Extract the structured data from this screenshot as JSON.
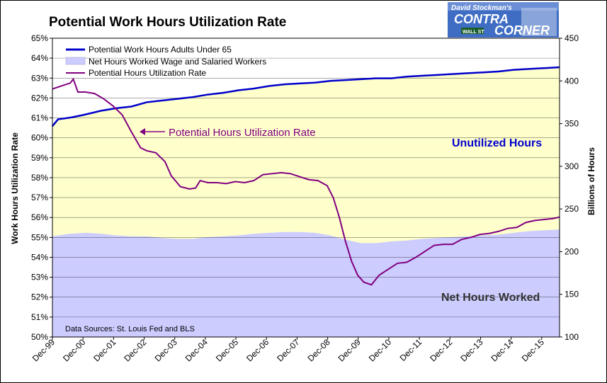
{
  "title": "Potential Work Hours Utilization Rate",
  "logo": {
    "line1": "David Stockman's",
    "line2": "CONTRA",
    "line3": "CORNER",
    "sign": "WALL ST"
  },
  "chart_data": {
    "type": "line",
    "title": "Potential Work Hours Utilization Rate",
    "ylabel_left": "Work Hours Utilization Rate",
    "ylabel_right": "Billions of Hours",
    "y_left_range": [
      0.5,
      0.65
    ],
    "y_left_ticks": [
      "50%",
      "51%",
      "52%",
      "53%",
      "54%",
      "55%",
      "56%",
      "57%",
      "58%",
      "59%",
      "60%",
      "61%",
      "62%",
      "63%",
      "64%",
      "65%"
    ],
    "y_right_range": [
      100,
      450
    ],
    "y_right_ticks": [
      "100",
      "150",
      "200",
      "250",
      "300",
      "350",
      "400",
      "450"
    ],
    "x_range": [
      1999.917,
      2016.5
    ],
    "x_ticks": [
      {
        "label": "Dec-99",
        "x": 1999.917
      },
      {
        "label": "Dec-00",
        "x": 2000.917
      },
      {
        "label": "Dec-01",
        "x": 2001.917
      },
      {
        "label": "Dec-02",
        "x": 2002.917
      },
      {
        "label": "Dec-03",
        "x": 2003.917
      },
      {
        "label": "Dec-04",
        "x": 2004.917
      },
      {
        "label": "Dec-05",
        "x": 2005.917
      },
      {
        "label": "Dec-06",
        "x": 2006.917
      },
      {
        "label": "Dec-07",
        "x": 2007.917
      },
      {
        "label": "Dec-08",
        "x": 2008.917
      },
      {
        "label": "Dec-09",
        "x": 2009.917
      },
      {
        "label": "Dec-10",
        "x": 2010.917
      },
      {
        "label": "Dec-11",
        "x": 2011.917
      },
      {
        "label": "Dec-12",
        "x": 2012.917
      },
      {
        "label": "Dec-13",
        "x": 2013.917
      },
      {
        "label": "Dec-14",
        "x": 2014.917
      },
      {
        "label": "Dec-15",
        "x": 2015.917
      }
    ],
    "grid": true,
    "legend_position": "top-left",
    "series": [
      {
        "name": "Potential Work Hours Adults Under 65",
        "axis": "right",
        "kind": "line",
        "color": "#0000cc",
        "points": [
          [
            1999.917,
            347
          ],
          [
            2000.1,
            355
          ],
          [
            2000.5,
            357
          ],
          [
            2000.917,
            360
          ],
          [
            2001.5,
            365
          ],
          [
            2002.0,
            368
          ],
          [
            2002.5,
            370
          ],
          [
            2003.0,
            375
          ],
          [
            2003.5,
            377
          ],
          [
            2004.0,
            379
          ],
          [
            2004.5,
            381
          ],
          [
            2005.0,
            384
          ],
          [
            2005.5,
            386
          ],
          [
            2006.0,
            389
          ],
          [
            2006.5,
            391
          ],
          [
            2007.0,
            394
          ],
          [
            2007.5,
            396
          ],
          [
            2008.0,
            397
          ],
          [
            2008.5,
            398
          ],
          [
            2009.0,
            400
          ],
          [
            2009.5,
            401
          ],
          [
            2010.0,
            402
          ],
          [
            2010.5,
            403
          ],
          [
            2011.0,
            403
          ],
          [
            2011.5,
            405
          ],
          [
            2012.0,
            406
          ],
          [
            2012.5,
            407
          ],
          [
            2013.0,
            408
          ],
          [
            2013.5,
            409
          ],
          [
            2014.0,
            410
          ],
          [
            2014.5,
            411
          ],
          [
            2015.0,
            413
          ],
          [
            2015.5,
            414
          ],
          [
            2016.0,
            415
          ],
          [
            2016.5,
            416
          ]
        ]
      },
      {
        "name": "Net Hours Worked Wage and Salaried Workers",
        "axis": "right",
        "kind": "area",
        "color": "#ccccff",
        "points": [
          [
            1999.917,
            218
          ],
          [
            2000.5,
            221
          ],
          [
            2001.0,
            222
          ],
          [
            2001.5,
            221
          ],
          [
            2002.0,
            219
          ],
          [
            2002.5,
            218
          ],
          [
            2003.0,
            218
          ],
          [
            2003.5,
            216
          ],
          [
            2004.0,
            215
          ],
          [
            2004.5,
            215
          ],
          [
            2005.0,
            217
          ],
          [
            2005.5,
            218
          ],
          [
            2006.0,
            219
          ],
          [
            2006.5,
            221
          ],
          [
            2007.0,
            222
          ],
          [
            2007.5,
            223
          ],
          [
            2008.0,
            223
          ],
          [
            2008.5,
            222
          ],
          [
            2009.0,
            219
          ],
          [
            2009.5,
            214
          ],
          [
            2010.0,
            210
          ],
          [
            2010.5,
            210
          ],
          [
            2011.0,
            212
          ],
          [
            2011.5,
            213
          ],
          [
            2012.0,
            215
          ],
          [
            2012.5,
            216
          ],
          [
            2013.0,
            217
          ],
          [
            2013.5,
            218
          ],
          [
            2014.0,
            219
          ],
          [
            2014.5,
            220
          ],
          [
            2015.0,
            222
          ],
          [
            2015.5,
            224
          ],
          [
            2016.0,
            225
          ],
          [
            2016.5,
            226
          ]
        ]
      },
      {
        "name": "Potential Hours Utilization Rate",
        "axis": "left",
        "kind": "line",
        "color": "#800080",
        "points": [
          [
            1999.917,
            0.6245
          ],
          [
            2000.2,
            0.626
          ],
          [
            2000.5,
            0.6275
          ],
          [
            2000.6,
            0.6295
          ],
          [
            2000.75,
            0.623
          ],
          [
            2001.0,
            0.623
          ],
          [
            2001.3,
            0.6222
          ],
          [
            2001.6,
            0.6195
          ],
          [
            2001.9,
            0.616
          ],
          [
            2002.2,
            0.6115
          ],
          [
            2002.5,
            0.603
          ],
          [
            2002.8,
            0.595
          ],
          [
            2003.0,
            0.5935
          ],
          [
            2003.3,
            0.5925
          ],
          [
            2003.6,
            0.588
          ],
          [
            2003.8,
            0.581
          ],
          [
            2004.1,
            0.5755
          ],
          [
            2004.4,
            0.5743
          ],
          [
            2004.6,
            0.5748
          ],
          [
            2004.75,
            0.5785
          ],
          [
            2005.0,
            0.5775
          ],
          [
            2005.3,
            0.5775
          ],
          [
            2005.6,
            0.577
          ],
          [
            2005.9,
            0.578
          ],
          [
            2006.2,
            0.5775
          ],
          [
            2006.5,
            0.5785
          ],
          [
            2006.8,
            0.5815
          ],
          [
            2007.1,
            0.582
          ],
          [
            2007.4,
            0.5825
          ],
          [
            2007.7,
            0.582
          ],
          [
            2008.0,
            0.5805
          ],
          [
            2008.3,
            0.579
          ],
          [
            2008.6,
            0.5785
          ],
          [
            2008.9,
            0.576
          ],
          [
            2009.1,
            0.57
          ],
          [
            2009.3,
            0.56
          ],
          [
            2009.5,
            0.548
          ],
          [
            2009.7,
            0.538
          ],
          [
            2009.9,
            0.531
          ],
          [
            2010.1,
            0.5275
          ],
          [
            2010.35,
            0.5262
          ],
          [
            2010.6,
            0.531
          ],
          [
            2010.9,
            0.534
          ],
          [
            2011.2,
            0.537
          ],
          [
            2011.5,
            0.5375
          ],
          [
            2011.8,
            0.54
          ],
          [
            2012.1,
            0.543
          ],
          [
            2012.4,
            0.546
          ],
          [
            2012.7,
            0.5465
          ],
          [
            2013.0,
            0.5465
          ],
          [
            2013.3,
            0.549
          ],
          [
            2013.6,
            0.55
          ],
          [
            2013.9,
            0.5515
          ],
          [
            2014.2,
            0.552
          ],
          [
            2014.5,
            0.553
          ],
          [
            2014.8,
            0.5545
          ],
          [
            2015.1,
            0.555
          ],
          [
            2015.4,
            0.5575
          ],
          [
            2015.7,
            0.5585
          ],
          [
            2016.0,
            0.559
          ],
          [
            2016.3,
            0.5595
          ],
          [
            2016.5,
            0.5602
          ]
        ]
      }
    ],
    "annotations": {
      "series_label": "Potential Hours Utilization Rate",
      "upper_region": "Unutilized Hours",
      "lower_region": "Net Hours Worked",
      "source": "Data Sources: St. Louis Fed and BLS"
    },
    "region_colors": {
      "unutilized": "#ffffcc",
      "worked": "#ccccff"
    }
  }
}
